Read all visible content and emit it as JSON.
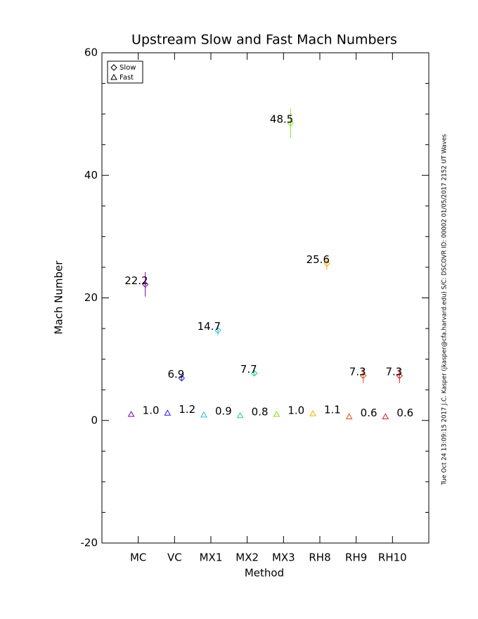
{
  "chart_data": {
    "type": "scatter",
    "title": "Upstream Slow and Fast Mach Numbers",
    "x_label": "Method",
    "y_label": "Mach Number",
    "annotation": "Tue Oct 24 13:09:15 2017  J.C. Kasper (jkasper@cfa.harvard.edu)  S/C: DSCOVR ID: 00002 01/05/2017  2152 UT Waves",
    "categories": [
      "MC",
      "VC",
      "MX1",
      "MX2",
      "MX3",
      "RH8",
      "RH9",
      "RH10"
    ],
    "colors": [
      "#7a00a8",
      "#1f1fe0",
      "#1ec0d8",
      "#1ed08a",
      "#80e020",
      "#f0b000",
      "#e05018",
      "#e01c1c"
    ],
    "series": [
      {
        "name": "Slow",
        "marker": "diamond",
        "values": [
          22.2,
          6.9,
          14.7,
          7.7,
          48.5,
          25.6,
          7.3,
          7.3
        ],
        "errors": [
          2.0,
          0.4,
          0.8,
          0.4,
          2.4,
          1.0,
          1.2,
          1.2
        ],
        "value_labels": [
          "22.2",
          "6.9",
          "14.7",
          "7.7",
          "48.5",
          "25.6",
          "7.3",
          "7.3"
        ]
      },
      {
        "name": "Fast",
        "marker": "triangle",
        "values": [
          1.0,
          1.2,
          0.9,
          0.8,
          1.0,
          1.1,
          0.6,
          0.6
        ],
        "value_labels": [
          "1.0",
          "1.2",
          "0.9",
          "0.8",
          "1.0",
          "1.1",
          "0.6",
          "0.6"
        ]
      }
    ],
    "ylim": [
      -20,
      60
    ],
    "yticks": [
      -20,
      0,
      20,
      40,
      60
    ],
    "yminorticks": [
      -15,
      -10,
      -5,
      5,
      10,
      15,
      25,
      30,
      35,
      45,
      50,
      55
    ],
    "legend": "upper left"
  }
}
